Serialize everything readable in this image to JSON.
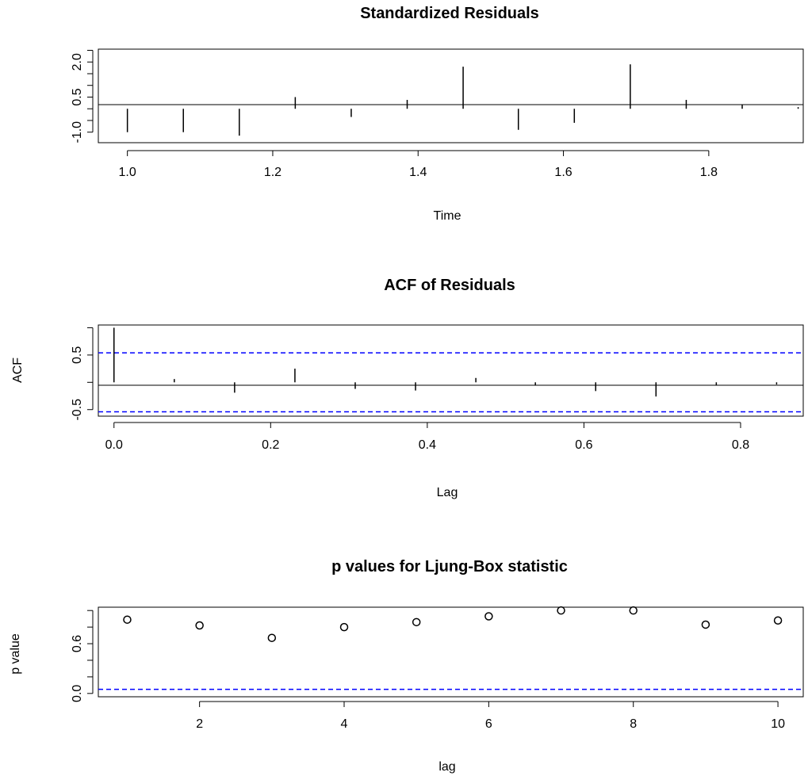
{
  "chart_data": [
    {
      "type": "bar",
      "title": "Standardized Residuals",
      "xlabel": "Time",
      "ylabel": "",
      "xlim": [
        0.96,
        1.93
      ],
      "ylim": [
        -1.45,
        2.55
      ],
      "x_ticks": [
        "1.0",
        "1.2",
        "1.4",
        "1.6",
        "1.8"
      ],
      "y_ticks": [
        "-1.0",
        "0.5",
        "2.0"
      ],
      "baseline": 0,
      "points": [
        {
          "x": 1.0,
          "y": -1.0
        },
        {
          "x": 1.077,
          "y": -1.0
        },
        {
          "x": 1.154,
          "y": -1.15
        },
        {
          "x": 1.231,
          "y": 0.5
        },
        {
          "x": 1.308,
          "y": -0.35
        },
        {
          "x": 1.385,
          "y": 0.38
        },
        {
          "x": 1.462,
          "y": 1.8
        },
        {
          "x": 1.538,
          "y": -0.9
        },
        {
          "x": 1.615,
          "y": -0.6
        },
        {
          "x": 1.692,
          "y": 1.9
        },
        {
          "x": 1.769,
          "y": 0.38
        },
        {
          "x": 1.846,
          "y": 0.18
        },
        {
          "x": 1.923,
          "y": 0.07
        }
      ]
    },
    {
      "type": "bar",
      "title": "ACF of Residuals",
      "xlabel": "Lag",
      "ylabel": "ACF",
      "xlim": [
        -0.02,
        0.88
      ],
      "ylim": [
        -0.62,
        1.05
      ],
      "x_ticks": [
        "0.0",
        "0.2",
        "0.4",
        "0.6",
        "0.8"
      ],
      "y_ticks": [
        "-0.5",
        "0.5"
      ],
      "baseline": 0,
      "confidence_bounds": [
        0.54,
        -0.54
      ],
      "points": [
        {
          "x": 0.0,
          "y": 1.0
        },
        {
          "x": 0.077,
          "y": 0.06
        },
        {
          "x": 0.154,
          "y": -0.19
        },
        {
          "x": 0.231,
          "y": 0.25
        },
        {
          "x": 0.308,
          "y": -0.12
        },
        {
          "x": 0.385,
          "y": -0.15
        },
        {
          "x": 0.462,
          "y": 0.08
        },
        {
          "x": 0.538,
          "y": -0.06
        },
        {
          "x": 0.615,
          "y": -0.16
        },
        {
          "x": 0.692,
          "y": -0.26
        },
        {
          "x": 0.769,
          "y": -0.05
        },
        {
          "x": 0.846,
          "y": -0.04
        }
      ]
    },
    {
      "type": "scatter",
      "title": "p values for Ljung-Box statistic",
      "xlabel": "lag",
      "ylabel": "p value",
      "xlim": [
        0.6,
        10.35
      ],
      "ylim": [
        -0.04,
        1.04
      ],
      "x_ticks": [
        "2",
        "4",
        "6",
        "8",
        "10"
      ],
      "y_ticks": [
        "0.0",
        "0.6"
      ],
      "reference_line": 0.05,
      "points": [
        {
          "x": 1,
          "y": 0.89
        },
        {
          "x": 2,
          "y": 0.82
        },
        {
          "x": 3,
          "y": 0.67
        },
        {
          "x": 4,
          "y": 0.8
        },
        {
          "x": 5,
          "y": 0.86
        },
        {
          "x": 6,
          "y": 0.93
        },
        {
          "x": 7,
          "y": 1.0
        },
        {
          "x": 8,
          "y": 1.0
        },
        {
          "x": 9,
          "y": 0.83
        },
        {
          "x": 10,
          "y": 0.88
        }
      ]
    }
  ],
  "colors": {
    "axis": "#000000",
    "reference_line": "#0000ff",
    "background": "#ffffff"
  }
}
